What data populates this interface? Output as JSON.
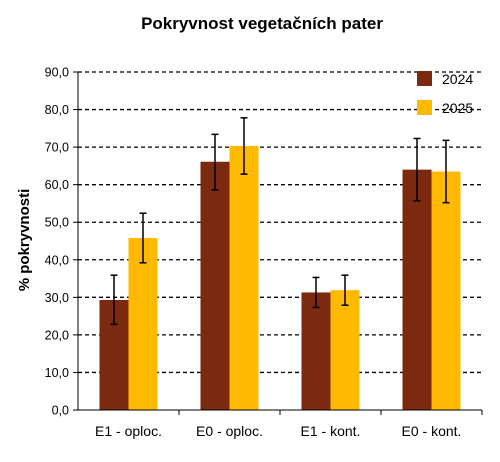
{
  "chart_data": {
    "type": "bar",
    "title": "Pokryvnost vegetačních pater",
    "xlabel": "",
    "ylabel": "% pokryvnosti",
    "ylim": [
      0,
      90
    ],
    "yticks": [
      "0,0",
      "10,0",
      "20,0",
      "30,0",
      "40,0",
      "50,0",
      "60,0",
      "70,0",
      "80,0",
      "90,0"
    ],
    "grid": true,
    "legend_position": "top-right",
    "categories": [
      "E1 - oploc.",
      "E0 - oploc.",
      "E1 - kont.",
      "E0 - kont."
    ],
    "series": [
      {
        "name": "2024",
        "color": "#7B2A10",
        "values": [
          29.3,
          66.1,
          31.3,
          64.0
        ],
        "err_low": [
          22.8,
          58.6,
          27.3,
          55.7
        ],
        "err_high": [
          35.9,
          73.4,
          35.3,
          72.3
        ]
      },
      {
        "name": "2025",
        "color": "#FFB900",
        "values": [
          45.8,
          70.3,
          31.9,
          63.5
        ],
        "err_low": [
          39.2,
          62.8,
          27.9,
          55.2
        ],
        "err_high": [
          52.4,
          77.8,
          35.9,
          71.8
        ]
      }
    ]
  }
}
